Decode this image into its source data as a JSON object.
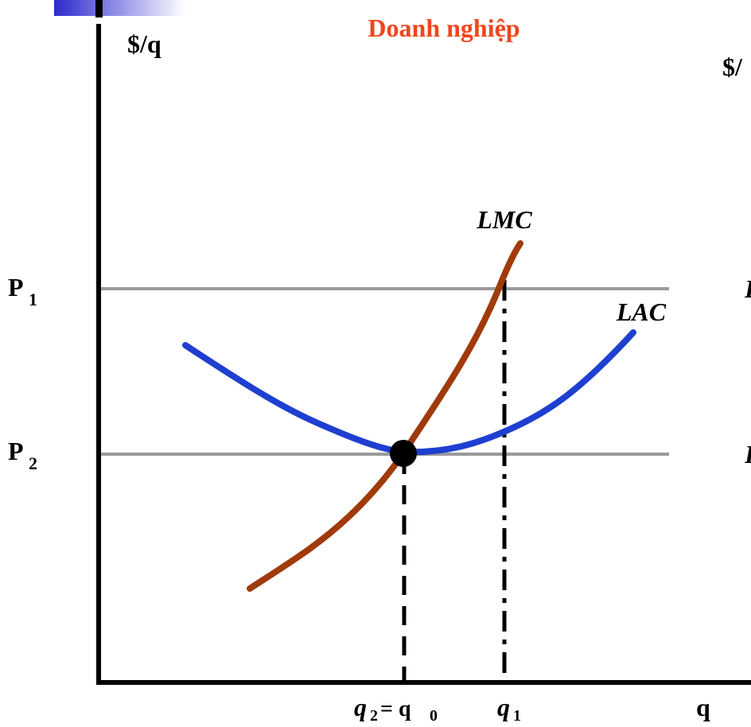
{
  "title": "Doanh nghiệp",
  "y_axis_label": "$/q",
  "x_axis_label": "q",
  "right_panel_y_label_partial": "$/",
  "price_labels": {
    "p1": {
      "main": "P",
      "sub": "1"
    },
    "p2": {
      "main": "P",
      "sub": "2"
    }
  },
  "curve_labels": {
    "lmc": "LMC",
    "lac": "LAC"
  },
  "quantity_labels": {
    "q2": {
      "main": "q",
      "sub": "2",
      "rest": "= q",
      "rest_sub": "0"
    },
    "q1": {
      "main": "q",
      "sub": "1"
    }
  },
  "right_panel_partial_letters": [
    "P",
    "P"
  ],
  "colors": {
    "title": "#f0461e",
    "lac": "#1f3fd0",
    "lmc": "#a03a0a",
    "price_lines": "#9a9a9a",
    "axes": "#000000",
    "corner_decoration": "#3a3ad0"
  }
}
